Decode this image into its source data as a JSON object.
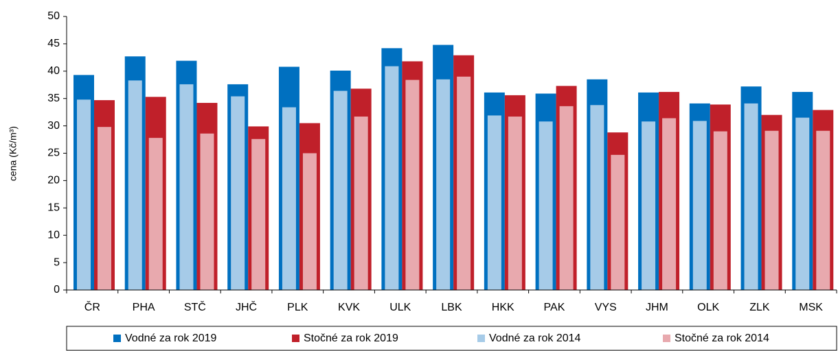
{
  "chart_data": {
    "type": "bar",
    "y_label": "cena (Kč/m³)",
    "categories": [
      "ČR",
      "PHA",
      "STČ",
      "JHČ",
      "PLK",
      "KVK",
      "ULK",
      "LBK",
      "HKK",
      "PAK",
      "VYS",
      "JHM",
      "OLK",
      "ZLK",
      "MSK"
    ],
    "series": [
      {
        "name": "Vodné za rok 2019",
        "color": "#0070c0",
        "values": [
          39.3,
          42.7,
          41.9,
          37.6,
          40.8,
          40.1,
          44.2,
          44.8,
          36.1,
          35.9,
          38.5,
          36.1,
          34.1,
          37.2,
          36.2
        ]
      },
      {
        "name": "Stočné za rok 2019",
        "color": "#c0202a",
        "values": [
          34.7,
          35.3,
          34.2,
          29.9,
          30.5,
          36.8,
          41.8,
          42.9,
          35.6,
          37.3,
          28.8,
          36.2,
          33.9,
          32.0,
          32.9
        ]
      },
      {
        "name": "Vodné za rok 2014",
        "color": "#a6cbe8",
        "values": [
          34.8,
          38.3,
          37.6,
          35.4,
          33.4,
          36.4,
          40.9,
          38.5,
          31.9,
          30.8,
          33.8,
          30.8,
          30.9,
          34.1,
          31.5
        ]
      },
      {
        "name": "Stočné za rok 2014",
        "color": "#e8a9ae",
        "values": [
          29.8,
          27.8,
          28.6,
          27.6,
          25.0,
          31.7,
          38.4,
          39.0,
          31.7,
          33.6,
          24.7,
          31.4,
          29.0,
          29.1,
          29.1
        ]
      }
    ],
    "ylim": [
      0,
      50
    ],
    "yticks": [
      0,
      5,
      10,
      15,
      20,
      25,
      30,
      35,
      40,
      45,
      50
    ]
  }
}
